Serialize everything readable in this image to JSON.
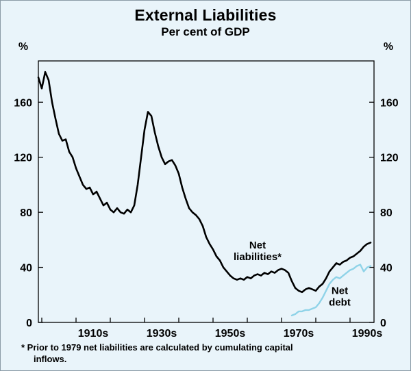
{
  "title": "External Liabilities",
  "subtitle": "Per cent of GDP",
  "footnote": {
    "line1": "* Prior to 1979 net liabilities are calculated by cumulating capital",
    "line2": "inflows."
  },
  "colors": {
    "background": "#e9f4fa",
    "net_liabilities_line": "#000000",
    "net_debt_line": "#8fd3e8",
    "axis": "#000000"
  },
  "chart_data": {
    "type": "line",
    "title": "External Liabilities",
    "subtitle": "Per cent of GDP",
    "xlabel": "",
    "ylabel": "%",
    "ylabel_right": "%",
    "grid": false,
    "legend_position": "none",
    "ylim": [
      0,
      190
    ],
    "yticks": [
      0,
      40,
      80,
      120,
      160
    ],
    "xlim": [
      1899,
      1997
    ],
    "xticks": [
      1900,
      1910,
      1920,
      1930,
      1940,
      1950,
      1960,
      1970,
      1980,
      1990
    ],
    "xtick_labels": [
      {
        "label": "1910s",
        "x": 1915
      },
      {
        "label": "1930s",
        "x": 1935
      },
      {
        "label": "1950s",
        "x": 1955
      },
      {
        "label": "1970s",
        "x": 1975
      },
      {
        "label": "1990s",
        "x": 1995
      }
    ],
    "series": [
      {
        "id": "net-liabilities",
        "name": "Net liabilities",
        "color": "#000000",
        "width": 2.6,
        "x": [
          1899,
          1900,
          1901,
          1902,
          1903,
          1904,
          1905,
          1906,
          1907,
          1908,
          1909,
          1910,
          1911,
          1912,
          1913,
          1914,
          1915,
          1916,
          1917,
          1918,
          1919,
          1920,
          1921,
          1922,
          1923,
          1924,
          1925,
          1926,
          1927,
          1928,
          1929,
          1930,
          1931,
          1932,
          1933,
          1934,
          1935,
          1936,
          1937,
          1938,
          1939,
          1940,
          1941,
          1942,
          1943,
          1944,
          1945,
          1946,
          1947,
          1948,
          1949,
          1950,
          1951,
          1952,
          1953,
          1954,
          1955,
          1956,
          1957,
          1958,
          1959,
          1960,
          1961,
          1962,
          1963,
          1964,
          1965,
          1966,
          1967,
          1968,
          1969,
          1970,
          1971,
          1972,
          1973,
          1974,
          1975,
          1976,
          1977,
          1978,
          1979,
          1980,
          1981,
          1982,
          1983,
          1984,
          1985,
          1986,
          1987,
          1988,
          1989,
          1990,
          1991,
          1992,
          1993,
          1994,
          1995,
          1996
        ],
        "y": [
          178,
          170,
          182,
          176,
          160,
          148,
          137,
          132,
          133,
          124,
          120,
          112,
          106,
          100,
          97,
          98,
          93,
          95,
          90,
          85,
          87,
          82,
          80,
          83,
          80,
          79,
          82,
          80,
          85,
          100,
          120,
          140,
          153,
          150,
          138,
          128,
          120,
          115,
          117,
          118,
          114,
          108,
          98,
          90,
          83,
          80,
          78,
          75,
          70,
          62,
          57,
          53,
          48,
          45,
          40,
          37,
          34,
          32,
          31,
          32,
          31,
          33,
          32,
          34,
          35,
          34,
          36,
          35,
          37,
          36,
          38,
          39,
          38,
          36,
          30,
          25,
          23,
          22,
          24,
          25,
          24,
          23,
          26,
          28,
          32,
          37,
          40,
          43,
          42,
          44,
          45,
          47,
          48,
          50,
          52,
          55,
          57,
          58
        ]
      },
      {
        "id": "net-debt",
        "name": "Net debt",
        "color": "#8fd3e8",
        "width": 2.4,
        "x": [
          1973,
          1974,
          1975,
          1976,
          1977,
          1978,
          1979,
          1980,
          1981,
          1982,
          1983,
          1984,
          1985,
          1986,
          1987,
          1988,
          1989,
          1990,
          1991,
          1992,
          1993,
          1994,
          1995,
          1996
        ],
        "y": [
          5,
          6,
          8,
          8,
          9,
          9,
          10,
          11,
          14,
          18,
          23,
          28,
          31,
          33,
          32,
          34,
          36,
          38,
          39,
          41,
          42,
          37,
          40,
          41
        ]
      }
    ],
    "annotations": [
      {
        "id": "net-liabilities-label",
        "lines": [
          "Net",
          "liabilities*"
        ],
        "x": 1963,
        "y": 52
      },
      {
        "id": "net-debt-label",
        "lines": [
          "Net",
          "debt"
        ],
        "x": 1987,
        "y": 19
      }
    ]
  }
}
